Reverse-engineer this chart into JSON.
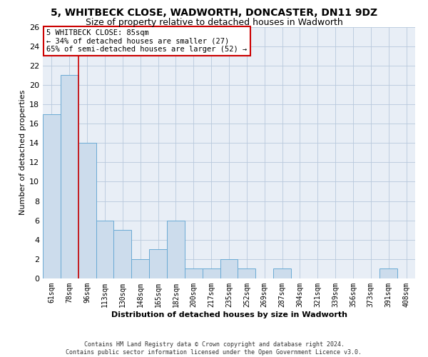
{
  "title": "5, WHITBECK CLOSE, WADWORTH, DONCASTER, DN11 9DZ",
  "subtitle": "Size of property relative to detached houses in Wadworth",
  "xlabel": "Distribution of detached houses by size in Wadworth",
  "ylabel": "Number of detached properties",
  "bar_labels": [
    "61sqm",
    "78sqm",
    "96sqm",
    "113sqm",
    "130sqm",
    "148sqm",
    "165sqm",
    "182sqm",
    "200sqm",
    "217sqm",
    "235sqm",
    "252sqm",
    "269sqm",
    "287sqm",
    "304sqm",
    "321sqm",
    "339sqm",
    "356sqm",
    "373sqm",
    "391sqm",
    "408sqm"
  ],
  "bar_values": [
    17,
    21,
    14,
    6,
    5,
    2,
    3,
    6,
    1,
    1,
    2,
    1,
    0,
    1,
    0,
    0,
    0,
    0,
    0,
    1,
    0
  ],
  "bar_color": "#ccdcec",
  "bar_edge_color": "#6aaad4",
  "vline_color": "#cc0000",
  "annotation_line1": "5 WHITBECK CLOSE: 85sqm",
  "annotation_line2": "← 34% of detached houses are smaller (27)",
  "annotation_line3": "65% of semi-detached houses are larger (52) →",
  "annotation_box_color": "#ffffff",
  "annotation_box_edge": "#cc0000",
  "ylim": [
    0,
    26
  ],
  "yticks": [
    0,
    2,
    4,
    6,
    8,
    10,
    12,
    14,
    16,
    18,
    20,
    22,
    24,
    26
  ],
  "footnote1": "Contains HM Land Registry data © Crown copyright and database right 2024.",
  "footnote2": "Contains public sector information licensed under the Open Government Licence v3.0.",
  "bg_color": "#ffffff",
  "plot_bg_color": "#e8eef6",
  "grid_color": "#b8c8dc",
  "title_fontsize": 10,
  "subtitle_fontsize": 9,
  "tick_fontsize": 7,
  "annotation_fontsize": 7.5,
  "footnote_fontsize": 6,
  "ylabel_fontsize": 8,
  "xlabel_fontsize": 8
}
